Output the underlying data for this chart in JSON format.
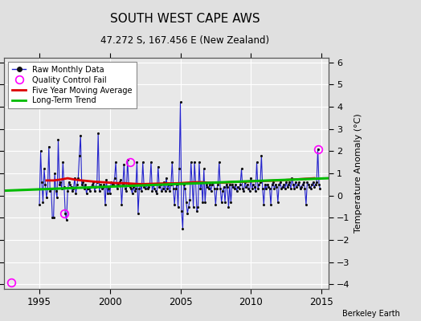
{
  "title": "SOUTH WEST CAPE AWS",
  "subtitle": "47.272 S, 167.456 E (New Zealand)",
  "ylabel": "Temperature Anomaly (°C)",
  "credit": "Berkeley Earth",
  "xlim": [
    1992.5,
    2015.5
  ],
  "ylim": [
    -4.2,
    6.2
  ],
  "yticks": [
    -4,
    -3,
    -2,
    -1,
    0,
    1,
    2,
    3,
    4,
    5,
    6
  ],
  "xticks": [
    1995,
    2000,
    2005,
    2010,
    2015
  ],
  "fig_bg_color": "#e0e0e0",
  "plot_bg_color": "#e8e8e8",
  "grid_color": "#ffffff",
  "raw_color": "#2222cc",
  "dot_color": "#111111",
  "ma_color": "#dd0000",
  "trend_color": "#00bb00",
  "qc_color": "#ff00ff",
  "raw_times": [
    1995.0,
    1995.083,
    1995.167,
    1995.25,
    1995.333,
    1995.417,
    1995.5,
    1995.583,
    1995.667,
    1995.75,
    1995.833,
    1995.917,
    1996.0,
    1996.083,
    1996.167,
    1996.25,
    1996.333,
    1996.417,
    1996.5,
    1996.583,
    1996.667,
    1996.75,
    1996.833,
    1996.917,
    1997.0,
    1997.083,
    1997.167,
    1997.25,
    1997.333,
    1997.417,
    1997.5,
    1997.583,
    1997.667,
    1997.75,
    1997.833,
    1997.917,
    1998.0,
    1998.083,
    1998.167,
    1998.25,
    1998.333,
    1998.417,
    1998.5,
    1998.583,
    1998.667,
    1998.75,
    1998.833,
    1998.917,
    1999.0,
    1999.083,
    1999.167,
    1999.25,
    1999.333,
    1999.417,
    1999.5,
    1999.583,
    1999.667,
    1999.75,
    1999.833,
    1999.917,
    2000.0,
    2000.083,
    2000.167,
    2000.25,
    2000.333,
    2000.417,
    2000.5,
    2000.583,
    2000.667,
    2000.75,
    2000.833,
    2000.917,
    2001.0,
    2001.083,
    2001.167,
    2001.25,
    2001.333,
    2001.417,
    2001.5,
    2001.583,
    2001.667,
    2001.75,
    2001.833,
    2001.917,
    2002.0,
    2002.083,
    2002.167,
    2002.25,
    2002.333,
    2002.417,
    2002.5,
    2002.583,
    2002.667,
    2002.75,
    2002.833,
    2002.917,
    2003.0,
    2003.083,
    2003.167,
    2003.25,
    2003.333,
    2003.417,
    2003.5,
    2003.583,
    2003.667,
    2003.75,
    2003.833,
    2003.917,
    2004.0,
    2004.083,
    2004.167,
    2004.25,
    2004.333,
    2004.417,
    2004.5,
    2004.583,
    2004.667,
    2004.75,
    2004.833,
    2004.917,
    2005.0,
    2005.083,
    2005.167,
    2005.25,
    2005.333,
    2005.417,
    2005.5,
    2005.583,
    2005.667,
    2005.75,
    2005.833,
    2005.917,
    2006.0,
    2006.083,
    2006.167,
    2006.25,
    2006.333,
    2006.417,
    2006.5,
    2006.583,
    2006.667,
    2006.75,
    2006.833,
    2006.917,
    2007.0,
    2007.083,
    2007.167,
    2007.25,
    2007.333,
    2007.417,
    2007.5,
    2007.583,
    2007.667,
    2007.75,
    2007.833,
    2007.917,
    2008.0,
    2008.083,
    2008.167,
    2008.25,
    2008.333,
    2008.417,
    2008.5,
    2008.583,
    2008.667,
    2008.75,
    2008.833,
    2008.917,
    2009.0,
    2009.083,
    2009.167,
    2009.25,
    2009.333,
    2009.417,
    2009.5,
    2009.583,
    2009.667,
    2009.75,
    2009.833,
    2009.917,
    2010.0,
    2010.083,
    2010.167,
    2010.25,
    2010.333,
    2010.417,
    2010.5,
    2010.583,
    2010.667,
    2010.75,
    2010.833,
    2010.917,
    2011.0,
    2011.083,
    2011.167,
    2011.25,
    2011.333,
    2011.417,
    2011.5,
    2011.583,
    2011.667,
    2011.75,
    2011.833,
    2011.917,
    2012.0,
    2012.083,
    2012.167,
    2012.25,
    2012.333,
    2012.417,
    2012.5,
    2012.583,
    2012.667,
    2012.75,
    2012.833,
    2012.917,
    2013.0,
    2013.083,
    2013.167,
    2013.25,
    2013.333,
    2013.417,
    2013.5,
    2013.583,
    2013.667,
    2013.75,
    2013.833,
    2013.917,
    2014.0,
    2014.083,
    2014.167,
    2014.25,
    2014.333,
    2014.417,
    2014.5,
    2014.583,
    2014.667,
    2014.75,
    2014.833,
    2014.917
  ],
  "raw_values": [
    -0.4,
    2.0,
    0.6,
    -0.3,
    1.2,
    0.5,
    -0.1,
    0.3,
    2.2,
    0.2,
    0.3,
    -1.0,
    -1.0,
    1.0,
    0.2,
    -0.1,
    2.5,
    0.5,
    0.6,
    0.3,
    1.5,
    0.4,
    -0.8,
    -1.1,
    0.2,
    0.6,
    0.5,
    0.4,
    0.2,
    0.3,
    0.8,
    0.1,
    0.5,
    0.8,
    1.8,
    2.7,
    0.5,
    0.6,
    0.3,
    0.5,
    0.1,
    0.3,
    0.3,
    0.2,
    0.4,
    0.5,
    0.6,
    0.2,
    0.4,
    0.6,
    2.8,
    0.2,
    0.5,
    0.3,
    0.4,
    0.5,
    -0.4,
    0.7,
    0.1,
    0.3,
    0.1,
    0.6,
    0.5,
    0.5,
    0.8,
    1.5,
    0.3,
    0.5,
    0.6,
    0.7,
    -0.4,
    0.5,
    1.4,
    0.3,
    0.2,
    1.6,
    0.5,
    0.4,
    0.3,
    0.1,
    0.4,
    0.2,
    0.3,
    1.5,
    -0.8,
    0.3,
    0.5,
    0.2,
    1.5,
    0.4,
    0.3,
    0.5,
    0.3,
    0.4,
    0.5,
    1.5,
    0.2,
    0.5,
    0.3,
    0.2,
    0.1,
    1.3,
    0.4,
    0.5,
    0.2,
    0.3,
    0.6,
    0.2,
    0.8,
    0.3,
    0.5,
    0.2,
    0.5,
    1.5,
    0.3,
    -0.4,
    0.3,
    0.5,
    -0.5,
    1.2,
    4.2,
    -0.7,
    -1.5,
    0.5,
    0.3,
    -0.3,
    -0.8,
    -0.5,
    -0.2,
    1.5,
    0.6,
    -0.5,
    1.5,
    0.6,
    -0.7,
    -0.5,
    1.5,
    0.3,
    0.6,
    -0.3,
    1.2,
    -0.3,
    0.5,
    0.4,
    0.3,
    0.5,
    0.2,
    0.5,
    0.6,
    0.3,
    -0.4,
    0.3,
    0.5,
    1.5,
    0.3,
    -0.3,
    0.2,
    0.4,
    -0.3,
    0.5,
    0.4,
    -0.5,
    0.5,
    -0.3,
    0.5,
    0.4,
    0.3,
    0.5,
    0.2,
    0.4,
    0.3,
    0.5,
    1.2,
    0.3,
    0.2,
    0.6,
    0.4,
    0.5,
    0.3,
    0.2,
    0.8,
    0.3,
    0.5,
    0.4,
    0.2,
    1.5,
    0.3,
    0.5,
    0.6,
    1.8,
    0.3,
    -0.4,
    0.5,
    0.3,
    0.5,
    0.4,
    0.3,
    -0.4,
    0.5,
    0.6,
    0.3,
    0.5,
    0.4,
    -0.3,
    0.5,
    0.6,
    0.3,
    0.4,
    0.5,
    0.3,
    0.6,
    0.4,
    0.5,
    0.6,
    0.3,
    0.8,
    0.5,
    0.3,
    0.6,
    0.4,
    0.5,
    0.6,
    0.3,
    0.4,
    0.5,
    0.6,
    0.3,
    -0.4,
    0.6,
    0.5,
    0.4,
    0.3,
    0.5,
    0.6,
    0.4,
    0.5,
    0.6,
    2.1,
    0.5,
    0.3
  ],
  "qc_fail_points": [
    [
      1993.0,
      -3.9
    ],
    [
      1996.75,
      -0.8
    ],
    [
      2001.417,
      1.5
    ],
    [
      2014.75,
      2.1
    ]
  ],
  "moving_avg_times": [
    1995.5,
    1996.0,
    1996.5,
    1997.0,
    1997.5,
    1998.0,
    1998.5,
    1999.0,
    1999.5,
    2000.0,
    2000.5,
    2001.0,
    2001.5,
    2002.0,
    2002.5,
    2003.0,
    2003.5,
    2004.0,
    2004.5,
    2005.0,
    2005.5,
    2006.0,
    2006.5,
    2007.0,
    2007.5,
    2008.0,
    2008.5,
    2009.0,
    2009.5,
    2010.0,
    2010.5,
    2011.0,
    2011.5,
    2012.0,
    2012.5,
    2013.0,
    2013.5,
    2014.0,
    2014.5
  ],
  "moving_avg_values": [
    0.68,
    0.68,
    0.72,
    0.78,
    0.72,
    0.68,
    0.65,
    0.62,
    0.6,
    0.58,
    0.56,
    0.56,
    0.54,
    0.52,
    0.52,
    0.53,
    0.54,
    0.55,
    0.55,
    0.56,
    0.58,
    0.6,
    0.6,
    0.58,
    0.58,
    0.58,
    0.6,
    0.62,
    0.62,
    0.64,
    0.65,
    0.66,
    0.67,
    0.68,
    0.7,
    0.72,
    0.74,
    0.76,
    0.78
  ],
  "trend_times": [
    1992.5,
    2015.5
  ],
  "trend_values": [
    0.22,
    0.78
  ]
}
